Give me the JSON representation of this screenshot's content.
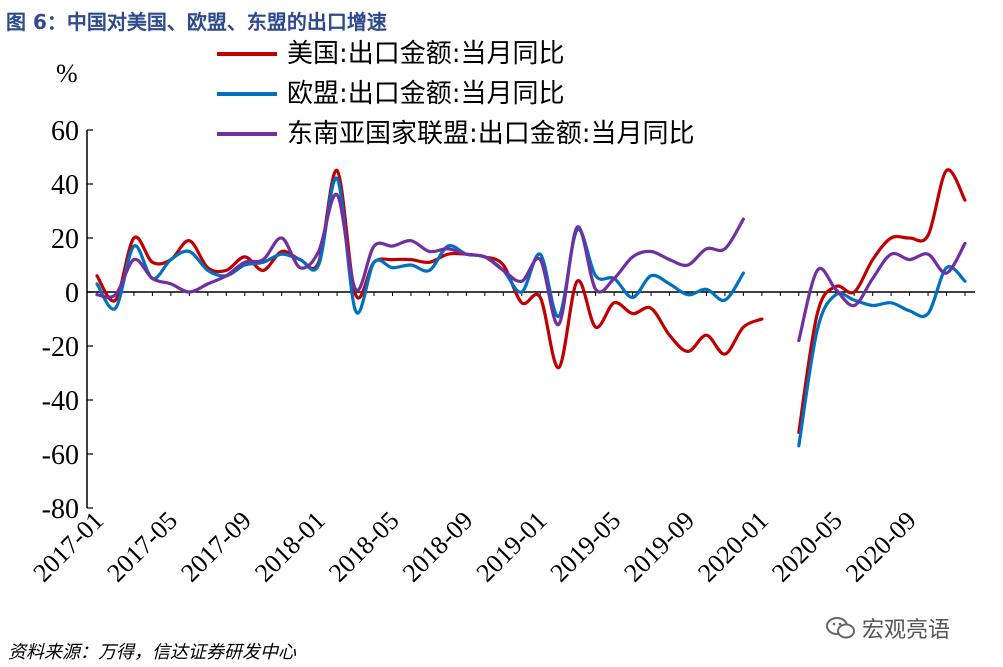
{
  "figure": {
    "title": "图 6：中国对美国、欧盟、东盟的出口增速",
    "source": "资料来源：万得，信达证券研发中心",
    "watermark": "宏观亮语"
  },
  "chart_data": {
    "type": "line",
    "ylabel": "%",
    "ylim": [
      -80,
      60
    ],
    "yticks": [
      60,
      40,
      20,
      0,
      -20,
      -40,
      -60,
      -80
    ],
    "xlabels": [
      "2017-01",
      "2017-05",
      "2017-09",
      "2018-01",
      "2018-05",
      "2018-09",
      "2019-01",
      "2019-05",
      "2019-09",
      "2020-01",
      "2020-05",
      "2020-09"
    ],
    "x": [
      "2017-01",
      "2017-02",
      "2017-03",
      "2017-04",
      "2017-05",
      "2017-06",
      "2017-07",
      "2017-08",
      "2017-09",
      "2017-10",
      "2017-11",
      "2017-12",
      "2018-01",
      "2018-02",
      "2018-03",
      "2018-04",
      "2018-05",
      "2018-06",
      "2018-07",
      "2018-08",
      "2018-09",
      "2018-10",
      "2018-11",
      "2018-12",
      "2019-01",
      "2019-02",
      "2019-03",
      "2019-04",
      "2019-05",
      "2019-06",
      "2019-07",
      "2019-08",
      "2019-09",
      "2019-10",
      "2019-11",
      "2019-12",
      "2020-01",
      "2020-02",
      "2020-03",
      "2020-04",
      "2020-05",
      "2020-06",
      "2020-07",
      "2020-08",
      "2020-09",
      "2020-10",
      "2020-11",
      "2020-12"
    ],
    "legend_position": "top",
    "grid": false,
    "series": [
      {
        "name": "美国:出口金额:当月同比",
        "color": "#c00000",
        "values": [
          6,
          -3,
          20,
          11,
          12,
          19,
          9,
          8,
          13,
          8,
          15,
          12,
          11,
          45,
          -1,
          11,
          12,
          12,
          11,
          14,
          14,
          13,
          10,
          -4,
          -2,
          -28,
          4,
          -13,
          -4,
          -8,
          -6,
          -16,
          -22,
          -16,
          -23,
          -13,
          -10,
          null,
          -52,
          -8,
          2,
          0,
          12,
          20,
          20,
          21,
          45,
          34
        ]
      },
      {
        "name": "欧盟:出口金额:当月同比",
        "color": "#0070c0",
        "values": [
          3,
          -6,
          17,
          5,
          12,
          15,
          8,
          6,
          10,
          11,
          14,
          12,
          10,
          42,
          -7,
          11,
          9,
          10,
          8,
          17,
          14,
          13,
          8,
          0,
          14,
          -9,
          23,
          6,
          5,
          -2,
          6,
          3,
          -1,
          1,
          -3,
          7,
          null,
          null,
          -57,
          -14,
          -1,
          -3,
          -5,
          -4,
          -7,
          -8,
          9,
          4
        ]
      },
      {
        "name": "东南亚国家联盟:出口金额:当月同比",
        "color": "#7030a0",
        "values": [
          -1,
          -1,
          12,
          5,
          3,
          0,
          3,
          6,
          11,
          12,
          20,
          9,
          15,
          36,
          1,
          17,
          17,
          19,
          15,
          16,
          14,
          13,
          8,
          4,
          12,
          -12,
          24,
          1,
          5,
          13,
          15,
          12,
          10,
          16,
          16,
          27,
          null,
          null,
          -18,
          8,
          1,
          -5,
          5,
          14,
          12,
          14,
          7,
          18
        ]
      }
    ]
  }
}
